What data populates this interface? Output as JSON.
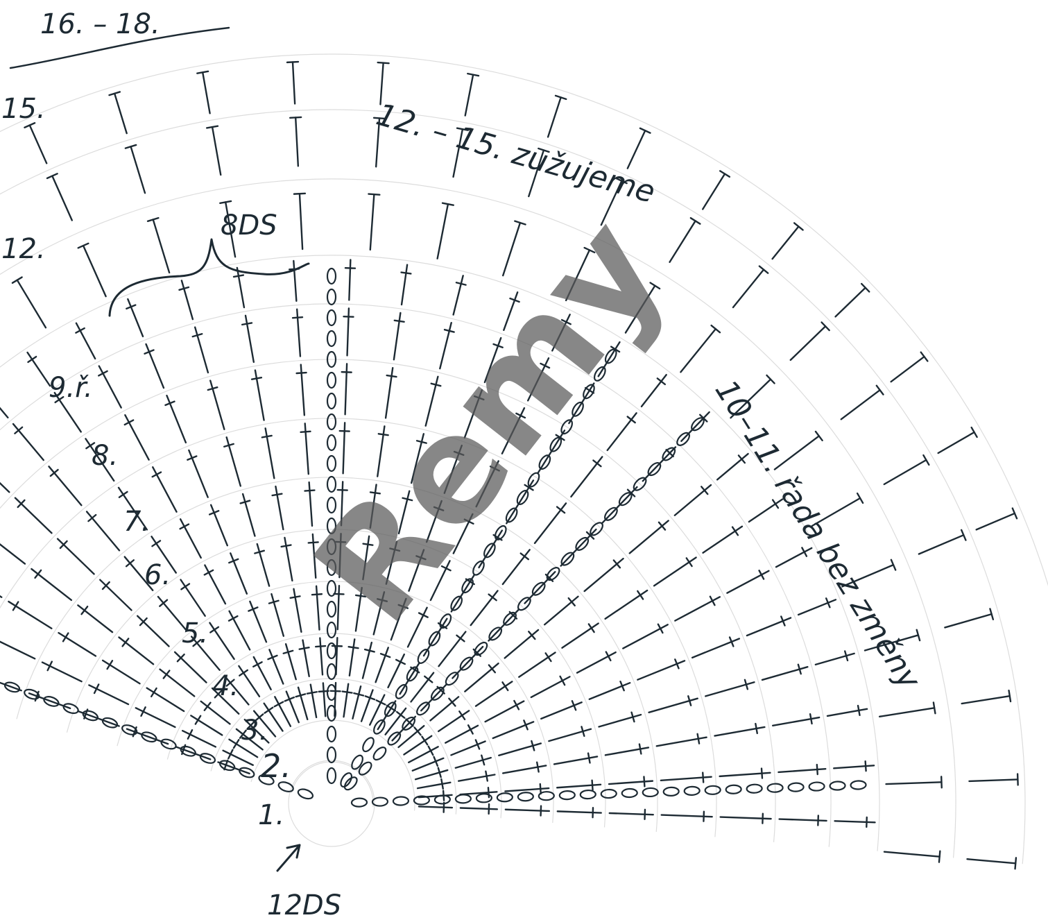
{
  "chart_data": {
    "type": "crochet-chart",
    "rows": [
      {
        "row": 1,
        "label": "1."
      },
      {
        "row": 2,
        "label": "2."
      },
      {
        "row": 3,
        "label": "3."
      },
      {
        "row": 4,
        "label": "4."
      },
      {
        "row": 5,
        "label": "5."
      },
      {
        "row": 6,
        "label": "6."
      },
      {
        "row": 7,
        "label": "7."
      },
      {
        "row": 8,
        "label": "8."
      },
      {
        "row": 9,
        "label": "9.ř."
      },
      {
        "row": 12,
        "label": "12."
      },
      {
        "row": 15,
        "label": "15."
      },
      {
        "row": 16,
        "label": "16. – 18."
      }
    ],
    "annotations": {
      "start_stitches": "12DS",
      "stitch_group": "8DS",
      "rows_10_11": "10–11. řada bez změny",
      "rows_12_15": "12. – 15. zužujeme"
    },
    "watermark": "Remy"
  }
}
